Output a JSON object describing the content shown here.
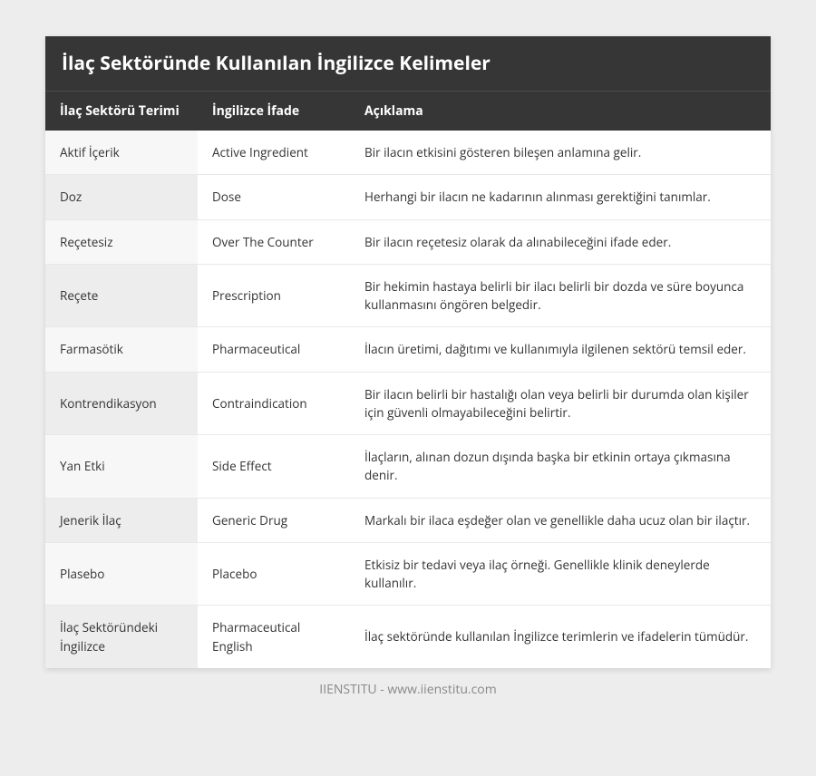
{
  "title": "İlaç Sektöründe Kullanılan İngilizce Kelimeler",
  "columns": [
    "İlaç Sektörü Terimi",
    "İngilizce İfade",
    "Açıklama"
  ],
  "rows": [
    {
      "term": "Aktif İçerik",
      "english": "Active Ingredient",
      "desc": "Bir ilacın etkisini gösteren bileşen anlamına gelir."
    },
    {
      "term": "Doz",
      "english": "Dose",
      "desc": "Herhangi bir ilacın ne kadarının alınması gerektiğini tanımlar."
    },
    {
      "term": "Reçetesiz",
      "english": "Over The Counter",
      "desc": "Bir ilacın reçetesiz olarak da alınabileceğini ifade eder."
    },
    {
      "term": "Reçete",
      "english": "Prescription",
      "desc": "Bir hekimin hastaya belirli bir ilacı belirli bir dozda ve süre boyunca kullanmasını öngören belgedir."
    },
    {
      "term": "Farmasötik",
      "english": "Pharmaceutical",
      "desc": "İlacın üretimi, dağıtımı ve kullanımıyla ilgilenen sektörü temsil eder."
    },
    {
      "term": "Kontrendikasyon",
      "english": "Contraindication",
      "desc": "Bir ilacın belirli bir hastalığı olan veya belirli bir durumda olan kişiler için güvenli olmayabileceğini belirtir."
    },
    {
      "term": "Yan Etki",
      "english": "Side Effect",
      "desc": "İlaçların, alınan dozun dışında başka bir etkinin ortaya çıkmasına denir."
    },
    {
      "term": "Jenerik İlaç",
      "english": "Generic Drug",
      "desc": "Markalı bir ilaca eşdeğer olan ve genellikle daha ucuz olan bir ilaçtır."
    },
    {
      "term": "Plasebo",
      "english": "Placebo",
      "desc": "Etkisiz bir tedavi veya ilaç örneği. Genellikle klinik deneylerde kullanılır."
    },
    {
      "term": "İlaç Sektöründeki İngilizce",
      "english": "Pharmaceutical English",
      "desc": "İlaç sektöründe kullanılan İngilizce terimlerin ve ifadelerin tümüdür."
    }
  ],
  "footer": "IIENSTITU - www.iienstitu.com",
  "style": {
    "header_bg": "#363636",
    "header_text": "#ffffff",
    "body_bg": "#ededed",
    "table_bg": "#ffffff",
    "cell_text": "#333333",
    "footer_text": "#888888",
    "stripe_even": "#ededed",
    "stripe_odd": "#f7f7f7",
    "border_color": "#e8e8e8",
    "title_fontsize": 21,
    "header_fontsize": 14,
    "cell_fontsize": 13.5,
    "footer_fontsize": 14
  }
}
